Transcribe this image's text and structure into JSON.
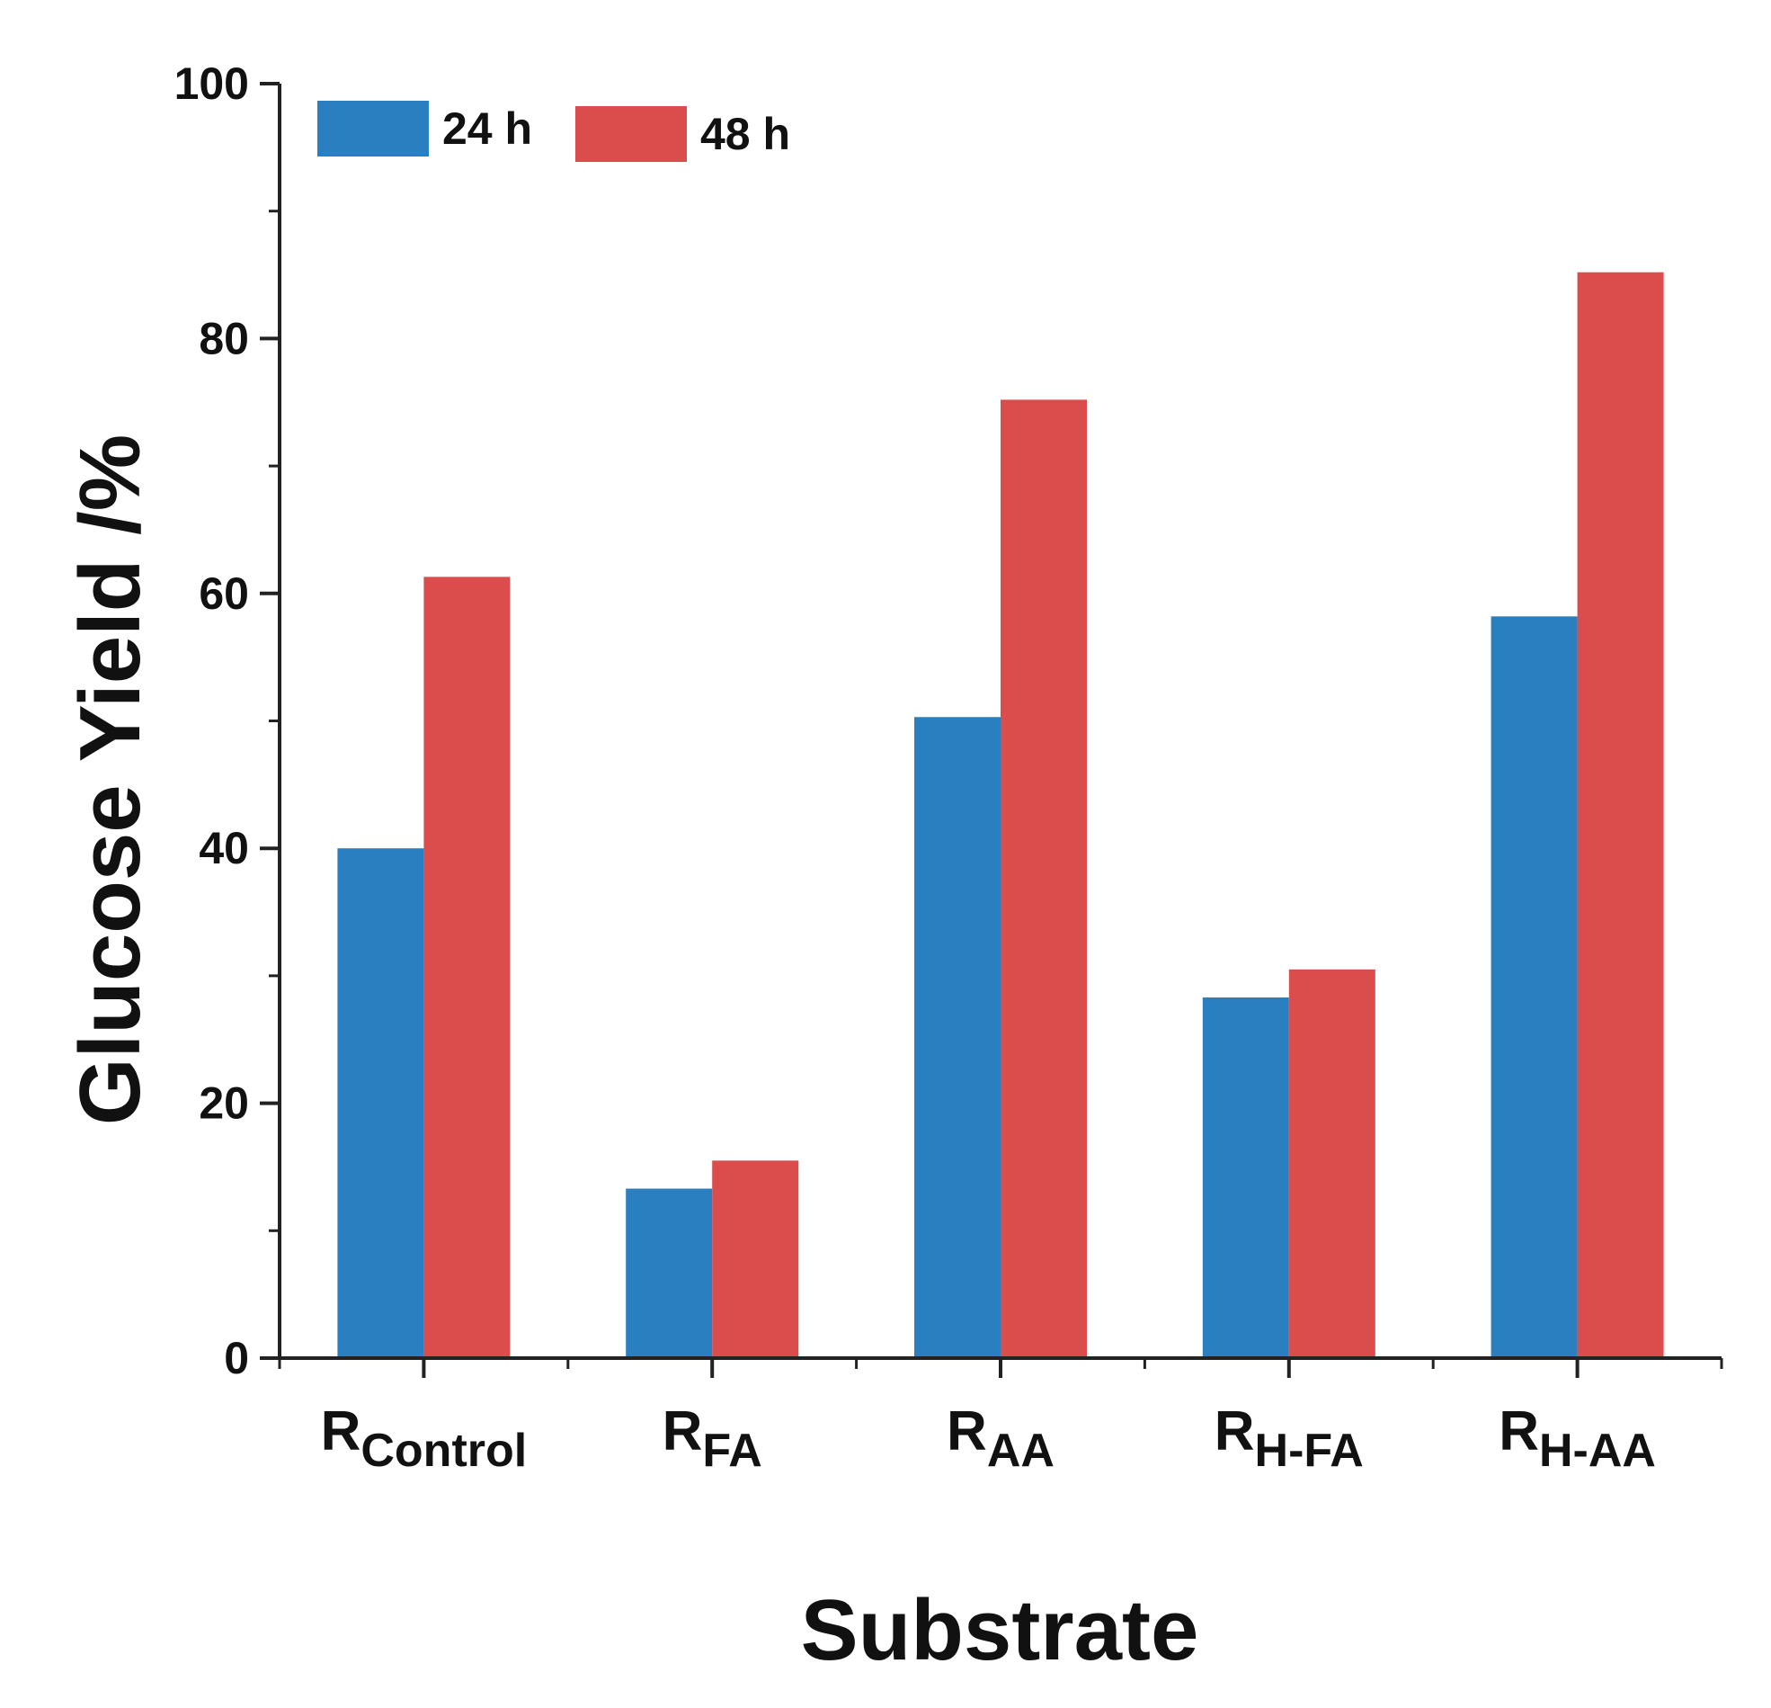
{
  "chart_data": {
    "type": "bar",
    "title": "",
    "xlabel": "Substrate",
    "ylabel": "Glucose Yield /%",
    "ylim": [
      0,
      100
    ],
    "yticks": [
      0,
      20,
      40,
      60,
      80,
      100
    ],
    "grid": false,
    "legend_position": "top-left",
    "categories": [
      {
        "main": "R",
        "sub": "Control"
      },
      {
        "main": "R",
        "sub": "FA"
      },
      {
        "main": "R",
        "sub": "AA"
      },
      {
        "main": "R",
        "sub": "H-FA"
      },
      {
        "main": "R",
        "sub": "H-AA"
      }
    ],
    "series": [
      {
        "name": "24 h",
        "color": "#2a7fc1",
        "values": [
          40,
          13.3,
          50.3,
          28.3,
          58.2
        ]
      },
      {
        "name": "48 h",
        "color": "#db4d4d",
        "values": [
          61.3,
          15.5,
          75.2,
          30.5,
          85.2
        ]
      }
    ]
  }
}
